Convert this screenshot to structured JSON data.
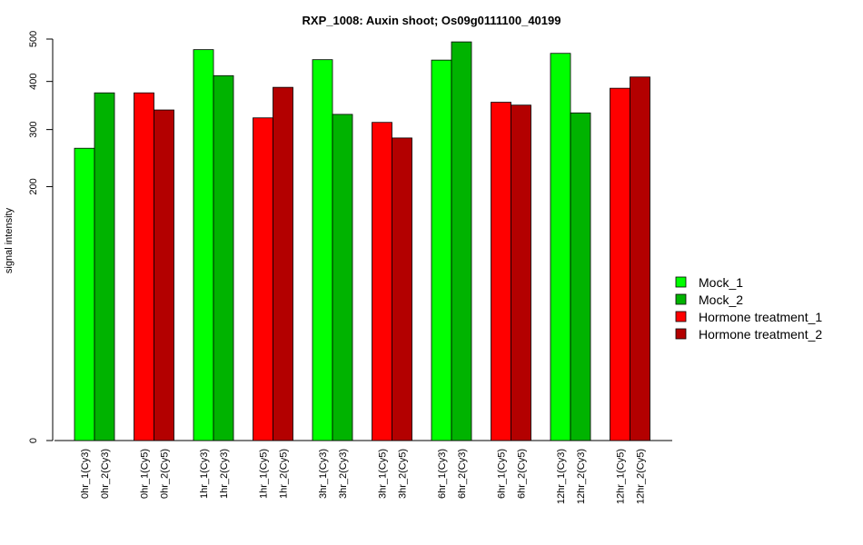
{
  "chart_data": {
    "type": "bar",
    "title": "RXP_1008: Auxin shoot; Os09g0111100_40199",
    "xlabel": "",
    "ylabel": "signal intensity",
    "yticks": [
      0,
      200,
      300,
      400,
      500
    ],
    "ylim": [
      0,
      500
    ],
    "grid": false,
    "legend_position": "right",
    "bar_groups": [
      {
        "bars": [
          {
            "label": "0hr_1(Cy3)",
            "value": 265,
            "series": 0
          },
          {
            "label": "0hr_2(Cy3)",
            "value": 375,
            "series": 1
          }
        ]
      },
      {
        "bars": [
          {
            "label": "0hr_1(Cy5)",
            "value": 375,
            "series": 2
          },
          {
            "label": "0hr_2(Cy5)",
            "value": 339,
            "series": 3
          }
        ]
      },
      {
        "bars": [
          {
            "label": "1hr_1(Cy3)",
            "value": 474,
            "series": 0
          },
          {
            "label": "1hr_2(Cy3)",
            "value": 413,
            "series": 1
          }
        ]
      },
      {
        "bars": [
          {
            "label": "1hr_1(Cy5)",
            "value": 323,
            "series": 2
          },
          {
            "label": "1hr_2(Cy5)",
            "value": 387,
            "series": 3
          }
        ]
      },
      {
        "bars": [
          {
            "label": "3hr_1(Cy3)",
            "value": 450,
            "series": 0
          },
          {
            "label": "3hr_2(Cy3)",
            "value": 330,
            "series": 1
          }
        ]
      },
      {
        "bars": [
          {
            "label": "3hr_1(Cy5)",
            "value": 314,
            "series": 2
          },
          {
            "label": "3hr_2(Cy5)",
            "value": 284,
            "series": 3
          }
        ]
      },
      {
        "bars": [
          {
            "label": "6hr_1(Cy3)",
            "value": 449,
            "series": 0
          },
          {
            "label": "6hr_2(Cy3)",
            "value": 493,
            "series": 1
          }
        ]
      },
      {
        "bars": [
          {
            "label": "6hr_1(Cy5)",
            "value": 355,
            "series": 2
          },
          {
            "label": "6hr_2(Cy5)",
            "value": 349,
            "series": 3
          }
        ]
      },
      {
        "bars": [
          {
            "label": "12hr_1(Cy3)",
            "value": 465,
            "series": 0
          },
          {
            "label": "12hr_2(Cy3)",
            "value": 333,
            "series": 1
          }
        ]
      },
      {
        "bars": [
          {
            "label": "12hr_1(Cy5)",
            "value": 385,
            "series": 2
          },
          {
            "label": "12hr_2(Cy5)",
            "value": 410,
            "series": 3
          }
        ]
      }
    ],
    "series": [
      {
        "name": "Mock_1",
        "color": "#00ff00"
      },
      {
        "name": "Mock_2",
        "color": "#00b300"
      },
      {
        "name": "Hormone treatment_1",
        "color": "#ff0000"
      },
      {
        "name": "Hormone treatment_2",
        "color": "#b30000"
      }
    ]
  }
}
